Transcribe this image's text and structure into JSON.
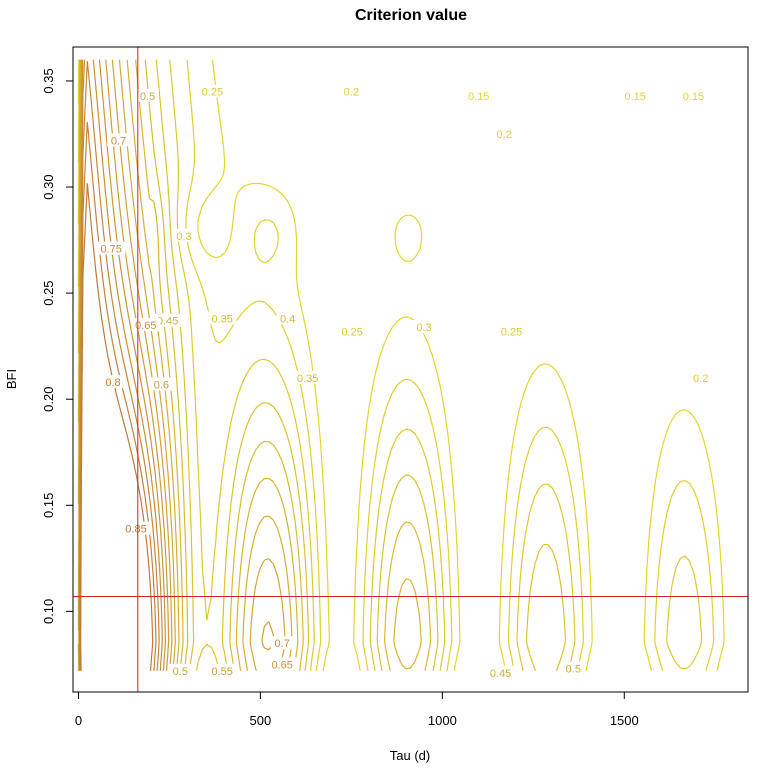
{
  "chart_data": {
    "type": "contour",
    "title": "Criterion value",
    "xlabel": "Tau (d)",
    "ylabel": "BFI",
    "xlim": [
      -15,
      1840
    ],
    "ylim": [
      0.062,
      0.366
    ],
    "x_ticks": [
      0,
      500,
      1000,
      1500
    ],
    "y_ticks": [
      0.1,
      0.15,
      0.2,
      0.25,
      0.3,
      0.35
    ],
    "y_tick_labels": [
      "0.10",
      "0.15",
      "0.20",
      "0.25",
      "0.30",
      "0.35"
    ],
    "selected_point": {
      "tau": 163,
      "bfi": 0.107
    },
    "reference_line_color": "#CC2222",
    "color_low": "#E3D62A",
    "color_high": "#C07A3C",
    "levels": [
      0.15,
      0.2,
      0.25,
      0.3,
      0.35,
      0.4,
      0.45,
      0.5,
      0.55,
      0.6,
      0.65,
      0.7,
      0.75,
      0.8,
      0.85
    ],
    "contour_labels": [
      {
        "text": "0.15",
        "x": 1530,
        "y": 0.343
      },
      {
        "text": "0.15",
        "x": 1690,
        "y": 0.343
      },
      {
        "text": "0.15",
        "x": 1100,
        "y": 0.343
      },
      {
        "text": "0.2",
        "x": 750,
        "y": 0.345
      },
      {
        "text": "0.2",
        "x": 1170,
        "y": 0.325
      },
      {
        "text": "0.2",
        "x": 1710,
        "y": 0.21
      },
      {
        "text": "0.25",
        "x": 368,
        "y": 0.345
      },
      {
        "text": "0.25",
        "x": 752,
        "y": 0.232
      },
      {
        "text": "0.25",
        "x": 1190,
        "y": 0.232
      },
      {
        "text": "0.3",
        "x": 290,
        "y": 0.277
      },
      {
        "text": "0.3",
        "x": 950,
        "y": 0.234
      },
      {
        "text": "0.35",
        "x": 395,
        "y": 0.238
      },
      {
        "text": "0.35",
        "x": 630,
        "y": 0.21
      },
      {
        "text": "0.4",
        "x": 575,
        "y": 0.238
      },
      {
        "text": "0.45",
        "x": 245,
        "y": 0.237
      },
      {
        "text": "0.45",
        "x": 1160,
        "y": 0.071
      },
      {
        "text": "0.5",
        "x": 190,
        "y": 0.343
      },
      {
        "text": "0.5",
        "x": 280,
        "y": 0.072
      },
      {
        "text": "0.5",
        "x": 1360,
        "y": 0.073
      },
      {
        "text": "0.55",
        "x": 395,
        "y": 0.072
      },
      {
        "text": "0.6",
        "x": 228,
        "y": 0.207
      },
      {
        "text": "0.65",
        "x": 185,
        "y": 0.235
      },
      {
        "text": "0.65",
        "x": 560,
        "y": 0.075
      },
      {
        "text": "0.7",
        "x": 110,
        "y": 0.322
      },
      {
        "text": "0.7",
        "x": 560,
        "y": 0.085
      },
      {
        "text": "0.75",
        "x": 90,
        "y": 0.271
      },
      {
        "text": "0.8",
        "x": 95,
        "y": 0.208
      },
      {
        "text": "0.85",
        "x": 158,
        "y": 0.139
      }
    ],
    "grid": false
  }
}
